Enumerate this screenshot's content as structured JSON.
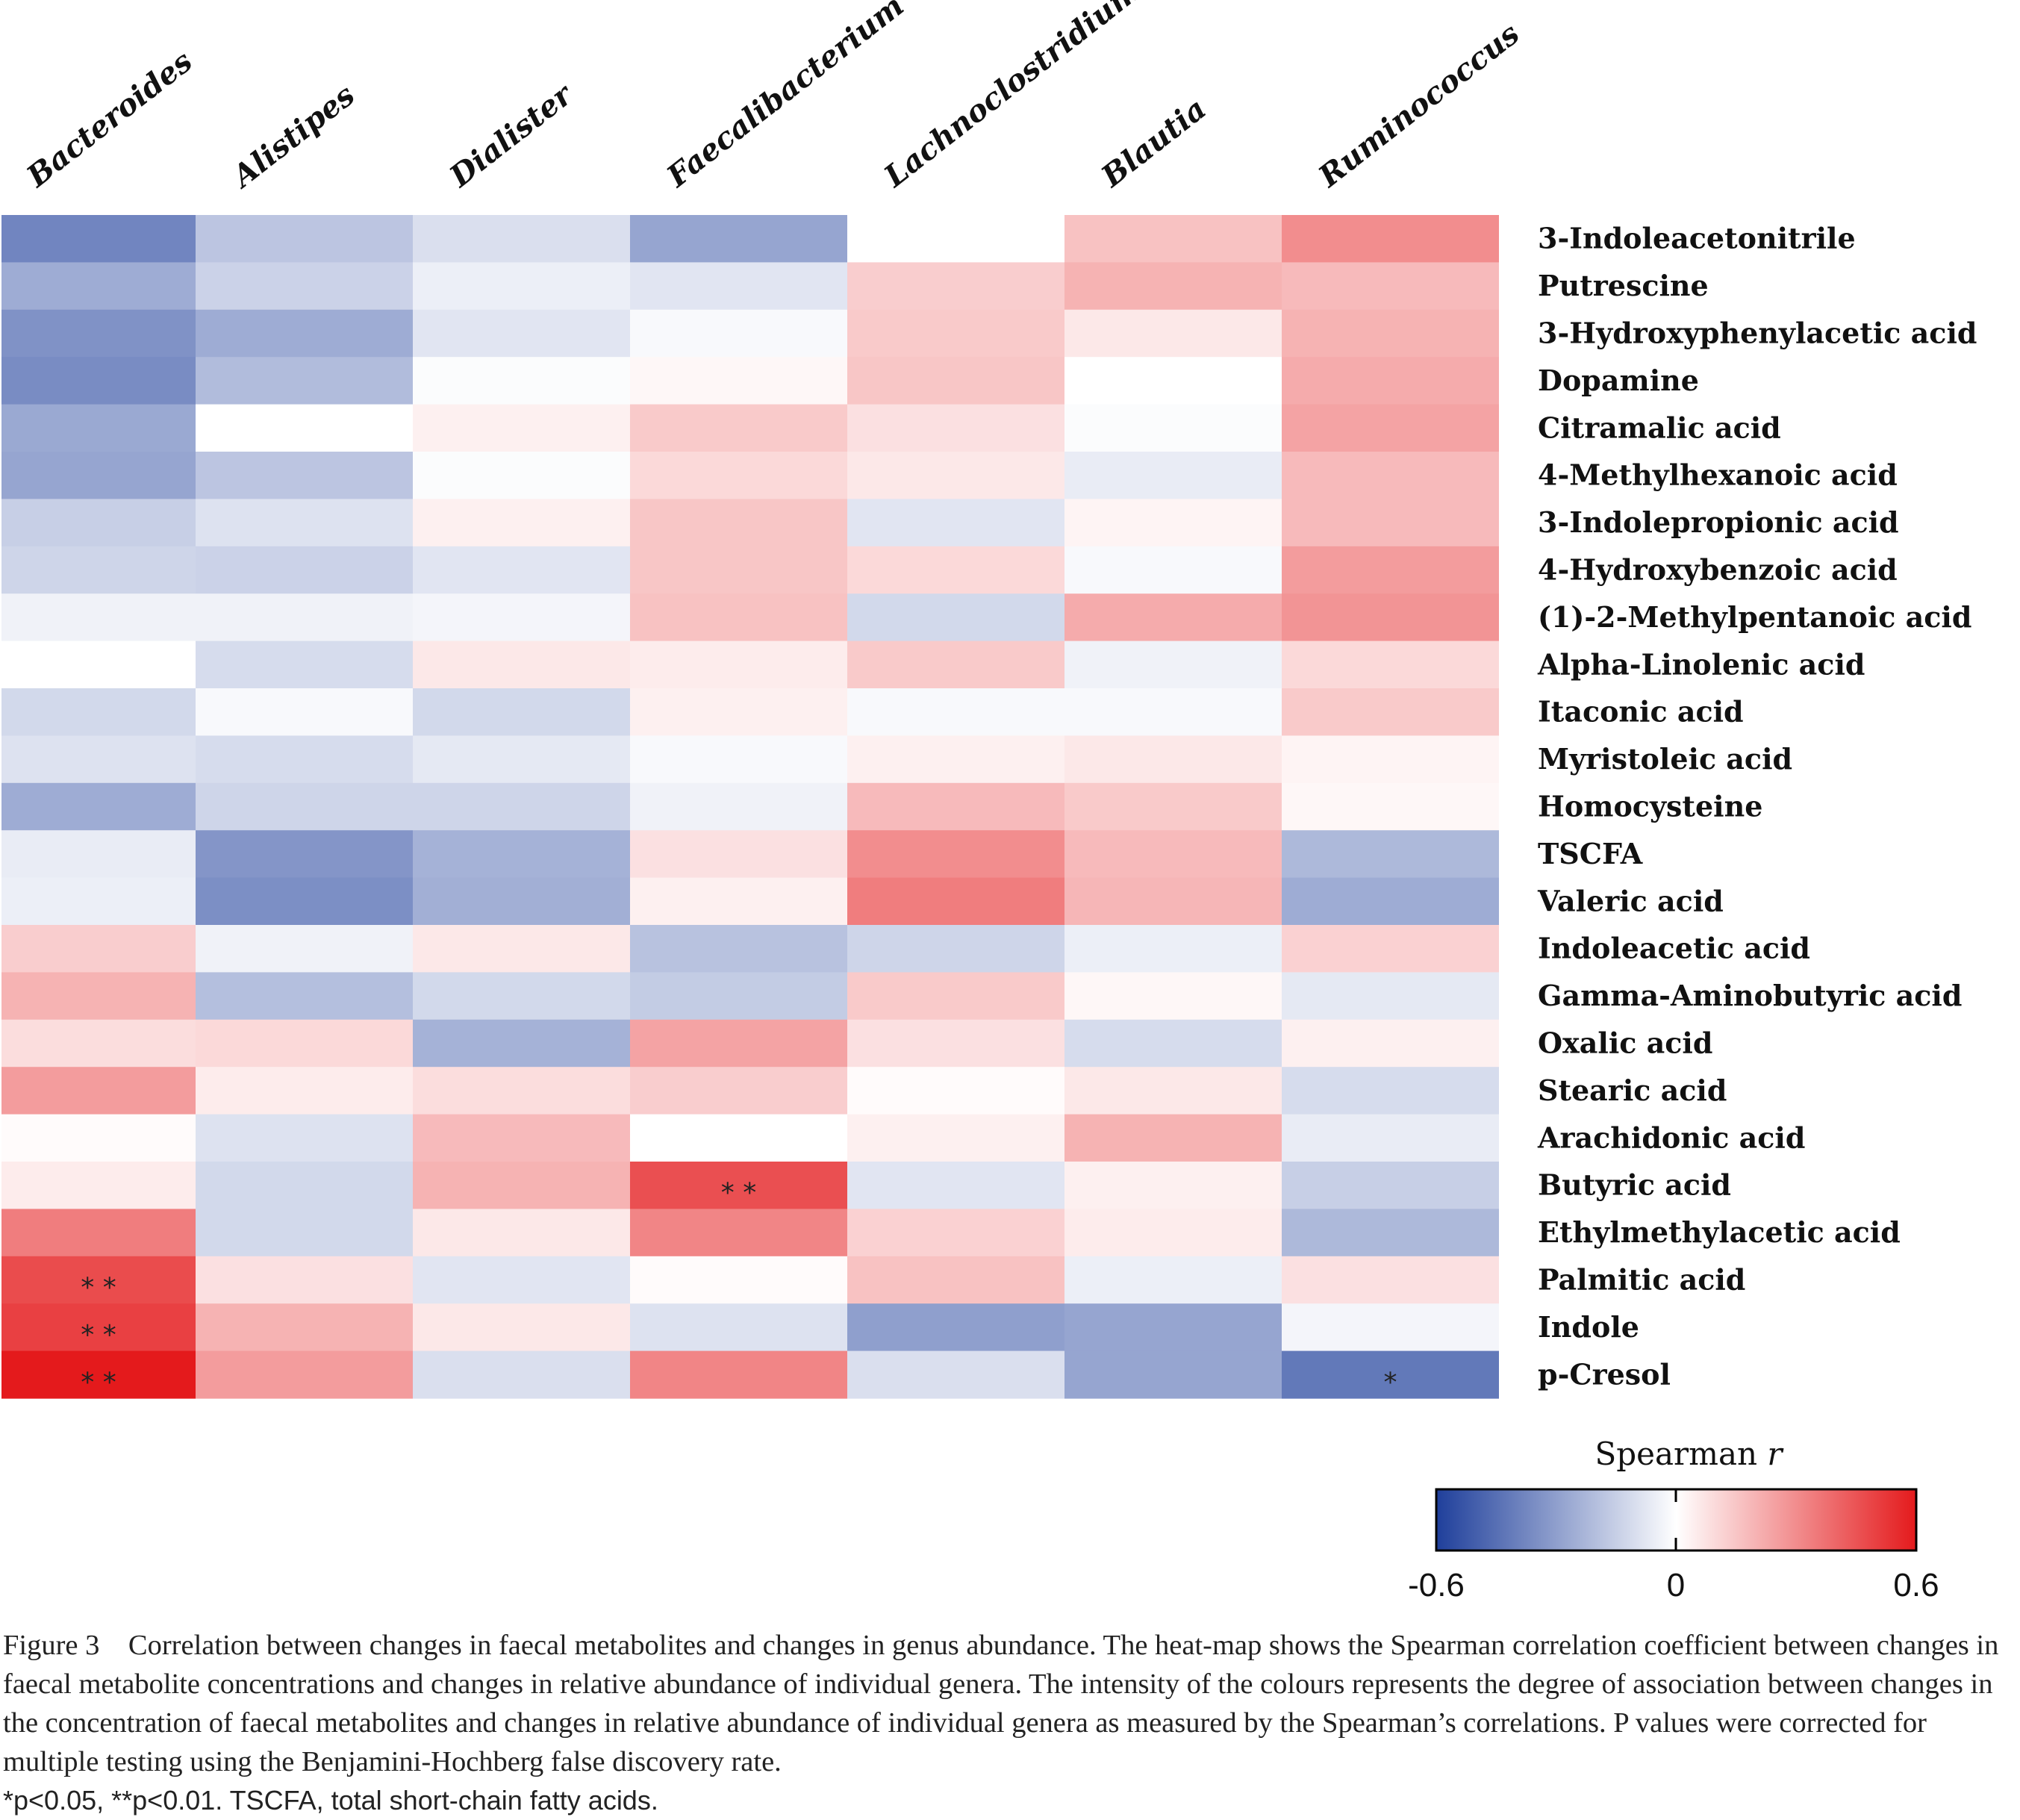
{
  "chart_data": {
    "type": "heatmap",
    "columns": [
      "Bacteroides",
      "Alistipes",
      "Dialister",
      "Faecalibacterium",
      "Lachnoclostridium",
      "Blautia",
      "Ruminococcus"
    ],
    "rows": [
      "3-Indoleacetonitrile",
      "Putrescine",
      "3-Hydroxyphenylacetic acid",
      "Dopamine",
      "Citramalic acid",
      "4-Methylhexanoic acid",
      "3-Indolepropionic acid",
      "4-Hydroxybenzoic acid",
      "(1)-2-Methylpentanoic acid",
      "Alpha-Linolenic acid",
      "Itaconic acid",
      "Myristoleic acid",
      "Homocysteine",
      "TSCFA",
      "Valeric acid",
      "Indoleacetic acid",
      "Gamma-Aminobutyric acid",
      "Oxalic acid",
      "Stearic acid",
      "Arachidonic acid",
      "Butyric acid",
      "Ethylmethylacetic acid",
      "Palmitic acid",
      "Indole",
      "p-Cresol"
    ],
    "values": [
      [
        -0.38,
        -0.18,
        -0.1,
        -0.28,
        0.0,
        0.16,
        0.3
      ],
      [
        -0.26,
        -0.14,
        -0.05,
        -0.08,
        0.13,
        0.2,
        0.18
      ],
      [
        -0.34,
        -0.26,
        -0.08,
        -0.02,
        0.14,
        0.06,
        0.2
      ],
      [
        -0.36,
        -0.21,
        -0.01,
        0.02,
        0.15,
        0.0,
        0.22
      ],
      [
        -0.27,
        0.0,
        0.04,
        0.14,
        0.08,
        -0.01,
        0.24
      ],
      [
        -0.28,
        -0.18,
        -0.01,
        0.1,
        0.06,
        -0.06,
        0.18
      ],
      [
        -0.15,
        -0.09,
        0.04,
        0.15,
        -0.08,
        0.03,
        0.18
      ],
      [
        -0.13,
        -0.14,
        -0.08,
        0.15,
        0.1,
        -0.02,
        0.26
      ],
      [
        -0.04,
        -0.04,
        -0.03,
        0.16,
        -0.12,
        0.22,
        0.28
      ],
      [
        0.0,
        -0.11,
        0.06,
        0.05,
        0.14,
        -0.04,
        0.1
      ],
      [
        -0.12,
        -0.02,
        -0.12,
        0.04,
        -0.02,
        -0.02,
        0.14
      ],
      [
        -0.09,
        -0.11,
        -0.07,
        -0.02,
        0.04,
        0.06,
        0.03
      ],
      [
        -0.26,
        -0.13,
        -0.13,
        -0.04,
        0.18,
        0.14,
        0.02
      ],
      [
        -0.06,
        -0.33,
        -0.24,
        0.08,
        0.3,
        0.18,
        -0.22
      ],
      [
        -0.05,
        -0.35,
        -0.25,
        0.04,
        0.34,
        0.19,
        -0.26
      ],
      [
        0.13,
        -0.04,
        0.06,
        -0.19,
        -0.13,
        -0.05,
        0.12
      ],
      [
        0.2,
        -0.2,
        -0.12,
        -0.16,
        0.14,
        0.02,
        -0.07
      ],
      [
        0.09,
        0.1,
        -0.24,
        0.24,
        0.08,
        -0.11,
        0.04
      ],
      [
        0.26,
        0.05,
        0.09,
        0.13,
        0.01,
        0.06,
        -0.11
      ],
      [
        0.01,
        -0.09,
        0.18,
        0.0,
        0.04,
        0.2,
        -0.06
      ],
      [
        0.05,
        -0.12,
        0.2,
        0.46,
        -0.08,
        0.04,
        -0.15
      ],
      [
        0.34,
        -0.12,
        0.06,
        0.32,
        0.12,
        0.05,
        -0.22
      ],
      [
        0.47,
        0.08,
        -0.08,
        0.01,
        0.16,
        -0.05,
        0.08
      ],
      [
        0.5,
        0.2,
        0.06,
        -0.09,
        -0.3,
        -0.28,
        -0.03
      ],
      [
        0.62,
        0.26,
        -0.1,
        0.32,
        -0.1,
        -0.28,
        -0.42
      ]
    ],
    "significance": [
      {
        "row": "Butyric acid",
        "column": "Faecalibacterium",
        "mark": "* *"
      },
      {
        "row": "Palmitic acid",
        "column": "Bacteroides",
        "mark": "* *"
      },
      {
        "row": "Indole",
        "column": "Bacteroides",
        "mark": "* *"
      },
      {
        "row": "p-Cresol",
        "column": "Bacteroides",
        "mark": "* *"
      },
      {
        "row": "p-Cresol",
        "column": "Ruminococcus",
        "mark": "*"
      }
    ],
    "colorbar": {
      "title_prefix": "Spearman ",
      "title_italic": "r",
      "min": -0.6,
      "mid": 0,
      "max": 0.6,
      "tick_labels": [
        "-0.6",
        "0",
        "0.6"
      ],
      "colors": {
        "negative": "#1f3f9b",
        "neutral": "#ffffff",
        "positive": "#e41a1c"
      }
    }
  },
  "caption": {
    "figure_label": "Figure 3",
    "text": "Correlation between changes in faecal metabolites and changes in genus abundance. The heat-map shows the Spearman correlation coefficient between changes in faecal metabolite concentrations and changes in relative abundance of individual genera. The intensity of the colours represents the degree of association between changes in the concentration of faecal metabolites and changes in relative abundance of individual genera as measured by the Spearman’s correlations. P values were corrected for multiple testing using the Benjamini-Hochberg false discovery rate.",
    "footnote": "*p<0.05, **p<0.01. TSCFA, total short-chain fatty acids."
  }
}
